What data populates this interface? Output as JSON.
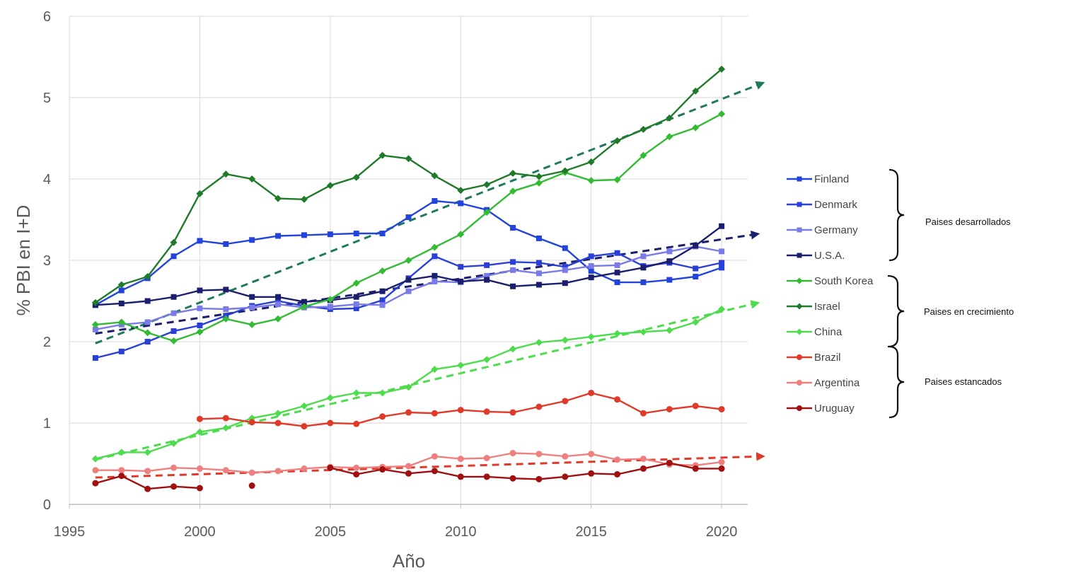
{
  "chart_data": {
    "type": "line",
    "title": "",
    "xlabel": "Año",
    "ylabel": "% PBI en I+D",
    "xlim": [
      1995,
      2021
    ],
    "ylim": [
      0,
      6
    ],
    "xticks": [
      1995,
      2000,
      2005,
      2010,
      2015,
      2020
    ],
    "yticks": [
      0,
      1,
      2,
      3,
      4,
      5,
      6
    ],
    "grid": "both",
    "legend_position": "right",
    "series": [
      {
        "name": "Finland",
        "color": "#2244dd",
        "marker": "square",
        "x": [
          1996,
          1997,
          1998,
          1999,
          2000,
          2001,
          2002,
          2003,
          2004,
          2005,
          2006,
          2007,
          2008,
          2009,
          2010,
          2011,
          2012,
          2013,
          2014,
          2015,
          2016,
          2017,
          2018,
          2019,
          2020
        ],
        "values": [
          2.45,
          2.63,
          2.78,
          3.05,
          3.24,
          3.2,
          3.25,
          3.3,
          3.31,
          3.32,
          3.33,
          3.33,
          3.53,
          3.73,
          3.7,
          3.62,
          3.4,
          3.27,
          3.15,
          2.87,
          2.73,
          2.73,
          2.76,
          2.8,
          2.91
        ]
      },
      {
        "name": "Denmark",
        "color": "#2a3fd6",
        "marker": "square",
        "x": [
          1996,
          1997,
          1998,
          1999,
          2000,
          2001,
          2002,
          2003,
          2004,
          2005,
          2006,
          2007,
          2008,
          2009,
          2010,
          2011,
          2012,
          2013,
          2014,
          2015,
          2016,
          2017,
          2018,
          2019,
          2020
        ],
        "values": [
          1.8,
          1.88,
          2.0,
          2.13,
          2.2,
          2.32,
          2.44,
          2.5,
          2.44,
          2.4,
          2.41,
          2.51,
          2.78,
          3.05,
          2.92,
          2.94,
          2.98,
          2.97,
          2.92,
          3.05,
          3.09,
          2.93,
          2.97,
          2.9,
          2.97
        ]
      },
      {
        "name": "Germany",
        "color": "#7b7be8",
        "marker": "square",
        "x": [
          1996,
          1997,
          1998,
          1999,
          2000,
          2001,
          2002,
          2003,
          2004,
          2005,
          2006,
          2007,
          2008,
          2009,
          2010,
          2011,
          2012,
          2013,
          2014,
          2015,
          2016,
          2017,
          2018,
          2019,
          2020
        ],
        "values": [
          2.15,
          2.21,
          2.24,
          2.35,
          2.41,
          2.4,
          2.42,
          2.46,
          2.42,
          2.43,
          2.46,
          2.45,
          2.62,
          2.74,
          2.73,
          2.81,
          2.88,
          2.84,
          2.88,
          2.93,
          2.94,
          3.05,
          3.11,
          3.17,
          3.11
        ]
      },
      {
        "name": "U.S.A.",
        "color": "#1b1f6e",
        "marker": "square",
        "x": [
          1996,
          1997,
          1998,
          1999,
          2000,
          2001,
          2002,
          2003,
          2004,
          2005,
          2006,
          2007,
          2008,
          2009,
          2010,
          2011,
          2012,
          2013,
          2014,
          2015,
          2016,
          2017,
          2018,
          2019,
          2020
        ],
        "values": [
          2.45,
          2.47,
          2.5,
          2.55,
          2.63,
          2.64,
          2.55,
          2.55,
          2.49,
          2.51,
          2.55,
          2.62,
          2.76,
          2.81,
          2.74,
          2.76,
          2.68,
          2.7,
          2.72,
          2.79,
          2.85,
          2.91,
          2.99,
          3.18,
          3.42
        ]
      },
      {
        "name": "South Korea",
        "color": "#33bb33",
        "marker": "diamond",
        "x": [
          1996,
          1997,
          1998,
          1999,
          2000,
          2001,
          2002,
          2003,
          2004,
          2005,
          2006,
          2007,
          2008,
          2009,
          2010,
          2011,
          2012,
          2013,
          2014,
          2015,
          2016,
          2017,
          2018,
          2019,
          2020
        ],
        "values": [
          2.21,
          2.24,
          2.11,
          2.01,
          2.12,
          2.28,
          2.21,
          2.28,
          2.43,
          2.52,
          2.72,
          2.87,
          3.0,
          3.16,
          3.32,
          3.59,
          3.85,
          3.95,
          4.08,
          3.98,
          3.99,
          4.29,
          4.52,
          4.63,
          4.8
        ]
      },
      {
        "name": "Israel",
        "color": "#1f7a2a",
        "marker": "diamond",
        "x": [
          1996,
          1997,
          1998,
          1999,
          2000,
          2001,
          2002,
          2003,
          2004,
          2005,
          2006,
          2007,
          2008,
          2009,
          2010,
          2011,
          2012,
          2013,
          2014,
          2015,
          2016,
          2017,
          2018,
          2019,
          2020
        ],
        "values": [
          2.48,
          2.7,
          2.8,
          3.22,
          3.82,
          4.06,
          4.0,
          3.76,
          3.75,
          3.92,
          4.02,
          4.29,
          4.25,
          4.04,
          3.86,
          3.93,
          4.07,
          4.03,
          4.1,
          4.21,
          4.47,
          4.61,
          4.75,
          5.08,
          5.35
        ]
      },
      {
        "name": "China",
        "color": "#4cdc4c",
        "marker": "diamond",
        "x": [
          1996,
          1997,
          1998,
          1999,
          2000,
          2001,
          2002,
          2003,
          2004,
          2005,
          2006,
          2007,
          2008,
          2009,
          2010,
          2011,
          2012,
          2013,
          2014,
          2015,
          2016,
          2017,
          2018,
          2019,
          2020
        ],
        "values": [
          0.56,
          0.64,
          0.64,
          0.75,
          0.89,
          0.94,
          1.06,
          1.12,
          1.21,
          1.31,
          1.37,
          1.37,
          1.44,
          1.66,
          1.71,
          1.78,
          1.91,
          1.99,
          2.02,
          2.06,
          2.1,
          2.12,
          2.14,
          2.24,
          2.4
        ]
      },
      {
        "name": "Brazil",
        "color": "#e03a2a",
        "marker": "circle",
        "x": [
          2000,
          2001,
          2002,
          2003,
          2004,
          2005,
          2006,
          2007,
          2008,
          2009,
          2010,
          2011,
          2012,
          2013,
          2014,
          2015,
          2016,
          2017,
          2018,
          2019,
          2020
        ],
        "values": [
          1.05,
          1.06,
          1.01,
          1.0,
          0.96,
          1.0,
          0.99,
          1.08,
          1.13,
          1.12,
          1.16,
          1.14,
          1.13,
          1.2,
          1.27,
          1.37,
          1.29,
          1.12,
          1.17,
          1.21,
          1.17
        ]
      },
      {
        "name": "Argentina",
        "color": "#f08080",
        "marker": "circle",
        "x": [
          1996,
          1997,
          1998,
          1999,
          2000,
          2001,
          2002,
          2003,
          2004,
          2005,
          2006,
          2007,
          2008,
          2009,
          2010,
          2011,
          2012,
          2013,
          2014,
          2015,
          2016,
          2017,
          2018,
          2019,
          2020
        ],
        "values": [
          0.42,
          0.42,
          0.41,
          0.45,
          0.44,
          0.42,
          0.39,
          0.41,
          0.44,
          0.46,
          0.45,
          0.46,
          0.47,
          0.59,
          0.56,
          0.57,
          0.63,
          0.62,
          0.59,
          0.62,
          0.55,
          0.56,
          0.49,
          0.48,
          0.52
        ]
      },
      {
        "name": "Uruguay",
        "color": "#a01010",
        "marker": "circle",
        "segments": [
          {
            "x": [
              1996,
              1997,
              1998,
              1999,
              2000
            ],
            "values": [
              0.26,
              0.35,
              0.19,
              0.22,
              0.2
            ]
          },
          {
            "x": [
              2002
            ],
            "values": [
              0.23
            ]
          },
          {
            "x": [
              2005,
              2006,
              2007,
              2008,
              2009,
              2010,
              2011,
              2012,
              2013,
              2014,
              2015,
              2016,
              2017,
              2018,
              2019,
              2020
            ],
            "values": [
              0.45,
              0.37,
              0.43,
              0.38,
              0.41,
              0.34,
              0.34,
              0.32,
              0.31,
              0.34,
              0.38,
              0.37,
              0.44,
              0.51,
              0.44,
              0.44
            ]
          }
        ]
      }
    ],
    "trendlines": [
      {
        "color": "#1f7a5a",
        "x": [
          1996,
          2021.5
        ],
        "values": [
          1.98,
          5.17
        ]
      },
      {
        "color": "#1b1f6e",
        "x": [
          1996,
          2021.3
        ],
        "values": [
          2.1,
          3.32
        ]
      },
      {
        "color": "#4cdc4c",
        "x": [
          1996,
          2021.3
        ],
        "values": [
          0.55,
          2.47
        ]
      },
      {
        "color": "#e03a2a",
        "x": [
          1996,
          2021.5
        ],
        "values": [
          0.33,
          0.59
        ]
      }
    ],
    "groups": [
      {
        "label": "Paises desarrollados",
        "members": [
          "Finland",
          "Denmark",
          "Germany",
          "U.S.A."
        ]
      },
      {
        "label": "Paises en crecimiento",
        "members": [
          "South Korea",
          "Israel",
          "China"
        ]
      },
      {
        "label": "Paises estancados",
        "members": [
          "Brazil",
          "Argentina",
          "Uruguay"
        ]
      }
    ]
  }
}
